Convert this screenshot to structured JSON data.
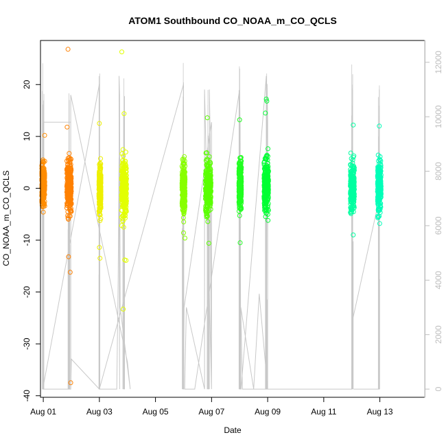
{
  "chart_data": {
    "type": "scatter",
    "title": "ATOM1 Southbound CO_NOAA_m_CO_QCLS",
    "xlabel": "Date",
    "ylabel": "CO_NOAA_m_CO_QCLS",
    "x_unit": "days",
    "xlim": [
      -0.1,
      13.6
    ],
    "ylim": [
      -40.3,
      28.5
    ],
    "x_ticks": [
      {
        "value": 0,
        "label": "Aug 01"
      },
      {
        "value": 2,
        "label": "Aug 03"
      },
      {
        "value": 4,
        "label": "Aug 05"
      },
      {
        "value": 6,
        "label": "Aug 07"
      },
      {
        "value": 8,
        "label": "Aug 09"
      },
      {
        "value": 10,
        "label": "Aug 11"
      },
      {
        "value": 12,
        "label": "Aug 13"
      }
    ],
    "y_ticks": [
      -40,
      -30,
      -20,
      -10,
      0,
      10,
      20
    ],
    "y2_ticks": [
      0,
      2000,
      4000,
      6000,
      8000,
      10000,
      12000
    ],
    "y2lim": [
      -300,
      12800
    ],
    "grid": false,
    "legend": "none",
    "point_color_scale": "flight time (orange to cyan)",
    "series": [
      {
        "flight": 1,
        "x": 0.0,
        "spread": 0.6,
        "color": "#ff8c00",
        "y_min": -5,
        "y_max": 10.5,
        "outliers": [
          [
            0.05,
            10.2
          ],
          [
            0.0,
            -4.6
          ]
        ]
      },
      {
        "flight": 2,
        "x": 0.92,
        "spread": 0.9,
        "color": "#ff8000",
        "y_min": -9,
        "y_max": 11,
        "outliers": [
          [
            0.88,
            26.8
          ],
          [
            0.9,
            -13.2
          ],
          [
            0.96,
            -16.2
          ],
          [
            0.98,
            -37.5
          ],
          [
            0.85,
            11.8
          ]
        ]
      },
      {
        "flight": 3,
        "x": 2.02,
        "spread": 0.4,
        "color": "#eef000",
        "y_min": -9,
        "y_max": 9,
        "outliers": [
          [
            2.0,
            12.5
          ],
          [
            2.02,
            -13.5
          ],
          [
            2.0,
            -11.4
          ]
        ]
      },
      {
        "flight": 4,
        "x": 2.88,
        "spread": 1.0,
        "color": "#e2ff00",
        "y_min": -10,
        "y_max": 11,
        "outliers": [
          [
            2.8,
            26.3
          ],
          [
            2.88,
            14.4
          ],
          [
            2.85,
            -23.3
          ],
          [
            2.9,
            -13.8
          ],
          [
            2.95,
            -13.9
          ]
        ]
      },
      {
        "flight": 5,
        "x": 5.0,
        "spread": 0.6,
        "color": "#88ff00",
        "y_min": -9,
        "y_max": 10,
        "outliers": [
          [
            5.05,
            -9.6
          ],
          [
            5.0,
            -8.6
          ]
        ]
      },
      {
        "flight": 6,
        "x": 5.88,
        "spread": 1.1,
        "color": "#5aff00",
        "y_min": -9,
        "y_max": 11,
        "outliers": [
          [
            5.85,
            13.6
          ],
          [
            5.9,
            -10.6
          ]
        ]
      },
      {
        "flight": 7,
        "x": 7.02,
        "spread": 0.5,
        "color": "#22ff22",
        "y_min": -7,
        "y_max": 11,
        "outliers": [
          [
            7.0,
            13.2
          ],
          [
            7.02,
            -10.5
          ]
        ]
      },
      {
        "flight": 8,
        "x": 7.95,
        "spread": 0.9,
        "color": "#00ff33",
        "y_min": -8,
        "y_max": 13,
        "outliers": [
          [
            7.95,
            17.2
          ],
          [
            7.97,
            16.8
          ],
          [
            7.92,
            14.5
          ]
        ]
      },
      {
        "flight": 9,
        "x": 11.02,
        "spread": 0.8,
        "color": "#00ffa0",
        "y_min": -8,
        "y_max": 11,
        "outliers": [
          [
            11.05,
            12.2
          ],
          [
            11.05,
            -9.0
          ]
        ]
      },
      {
        "flight": 10,
        "x": 11.98,
        "spread": 0.7,
        "color": "#00ffb8",
        "y_min": -7,
        "y_max": 11,
        "outliers": [
          [
            11.98,
            12.0
          ]
        ]
      }
    ],
    "altitude_trace": {
      "axis": "right",
      "color": "#c8c8c8",
      "x": [
        0.0,
        0.0,
        0.98,
        0.98,
        0.0,
        -0.02,
        2.0,
        2.0,
        2.0,
        2.62,
        2.67,
        2.7,
        2.72,
        2.7,
        2.72,
        2.74,
        3.1,
        3.0,
        0.98,
        0.98,
        0.98,
        1.0,
        2.0,
        2.62,
        2.0,
        5.0,
        5.0,
        5.0,
        5.02,
        6.0,
        6.0,
        6.0,
        5.92,
        5.95,
        6.0,
        5.75,
        5.75,
        5.1,
        5.04,
        5.4,
        7.0,
        7.02,
        7.04,
        7.05,
        7.95,
        7.95,
        7.95,
        7.98,
        8.0,
        8.0,
        7.7,
        7.5,
        7.04,
        7.1,
        11.0,
        11.02,
        11.98,
        11.98,
        11.98,
        11.06
      ],
      "altitude": [
        0,
        9800,
        9800,
        0,
        0,
        0,
        11200,
        11000,
        0,
        0,
        4000,
        8500,
        0,
        11500,
        10800,
        3000,
        0,
        1000,
        10800,
        0,
        0,
        1100,
        0,
        0,
        0,
        11200,
        11200,
        0,
        3000,
        9800,
        9000,
        0,
        11000,
        9300,
        0,
        11000,
        0,
        3000,
        0,
        0,
        11000,
        9600,
        0,
        0,
        11500,
        10800,
        0,
        11200,
        9800,
        0,
        3500,
        0,
        3000,
        0,
        0,
        2500,
        7000,
        11000,
        0,
        0
      ]
    }
  }
}
